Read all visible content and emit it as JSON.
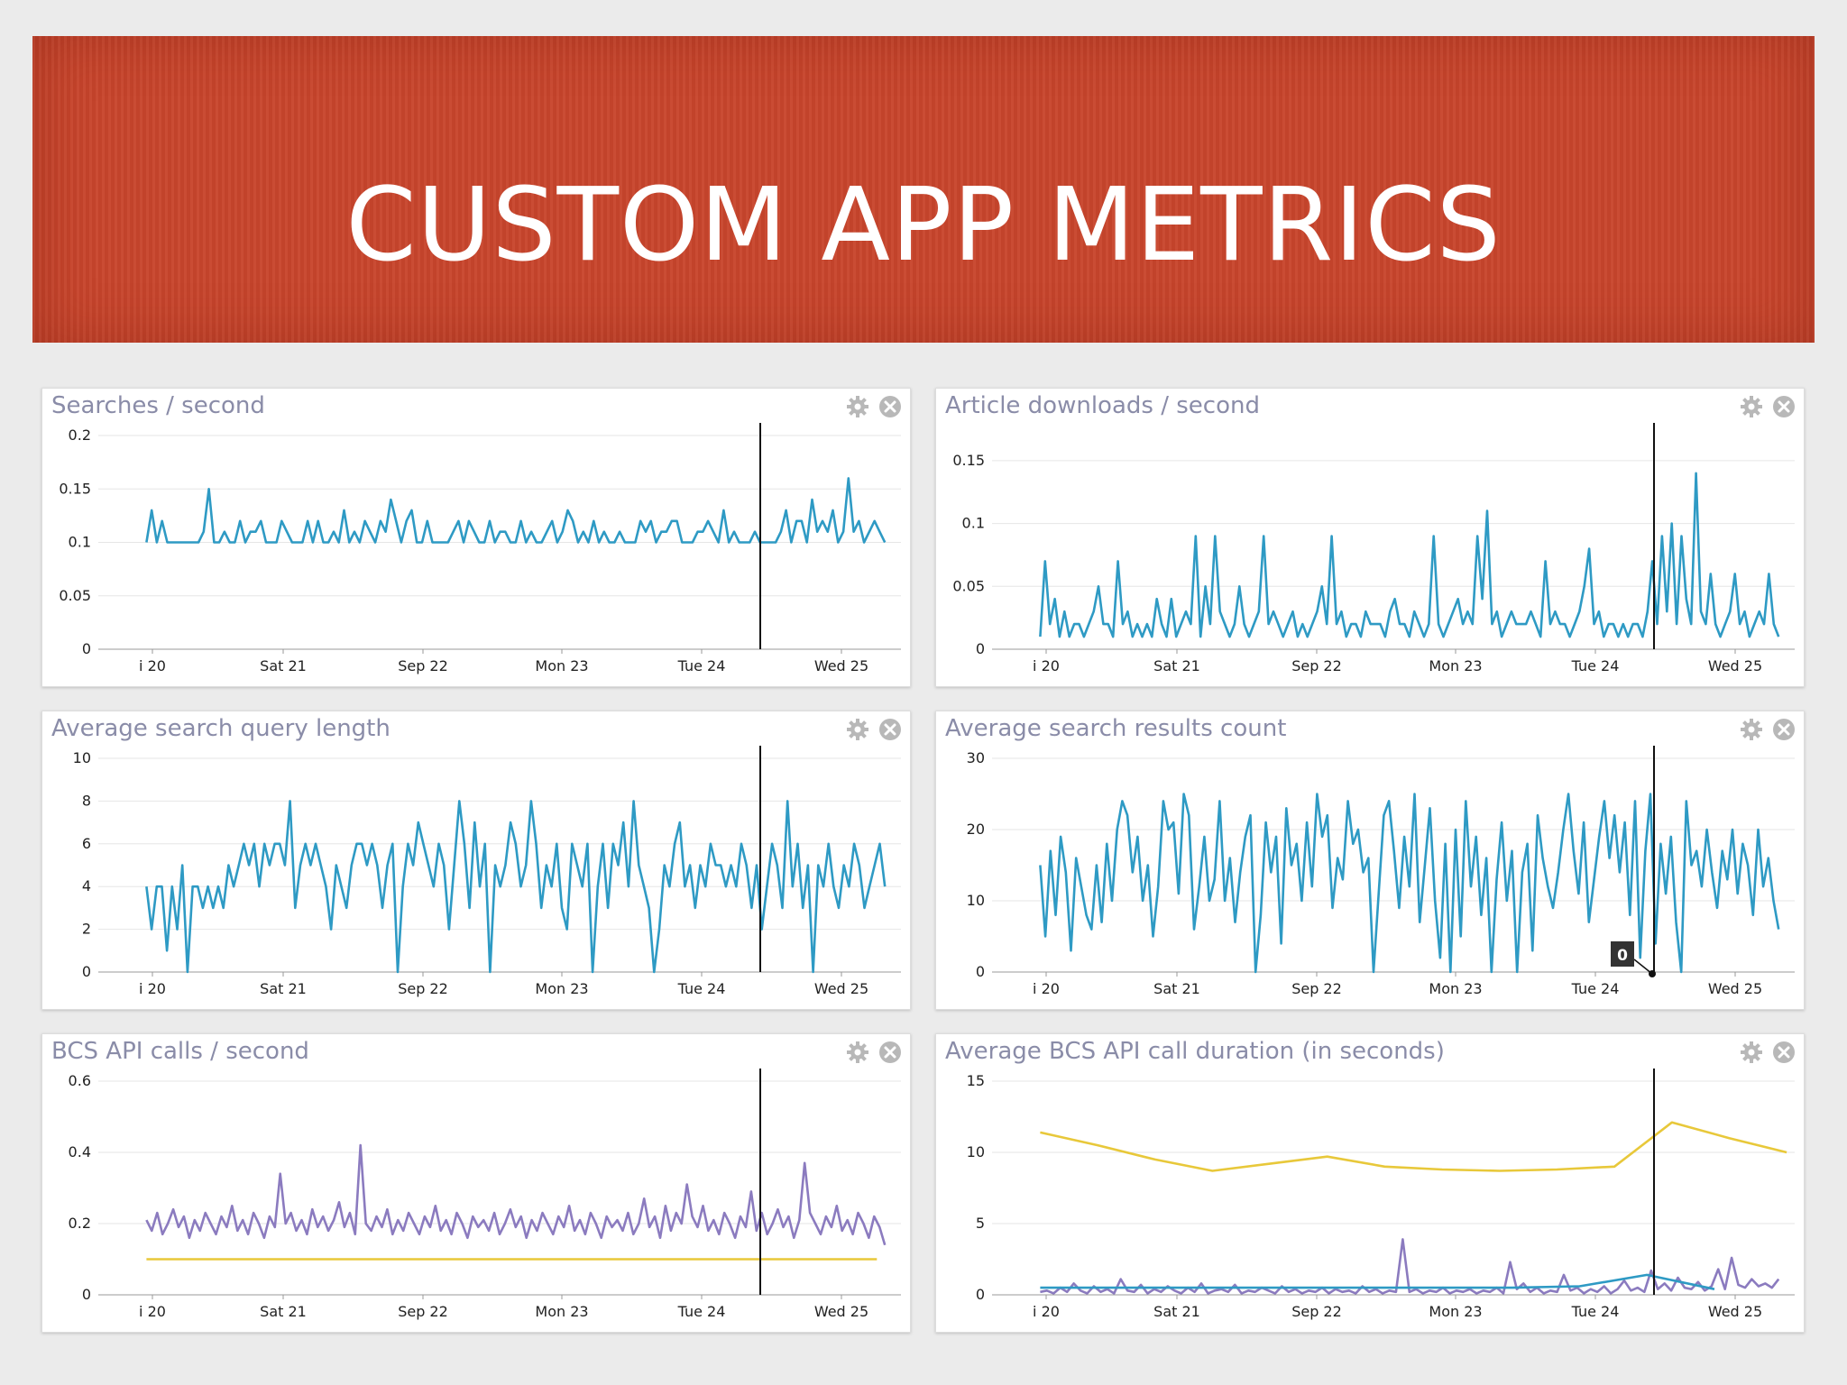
{
  "slide": {
    "title": "CUSTOM APP METRICS"
  },
  "colors": {
    "banner": "#c8452c",
    "series_blue": "#2e9ac4",
    "series_purple": "#8b7bbf",
    "series_yellow": "#e8c83a",
    "grid": "#e6e6e6",
    "marker": "#111111"
  },
  "x_ticks": [
    "i 20",
    "Sat 21",
    "Sep 22",
    "Mon 23",
    "Tue 24",
    "Wed 25"
  ],
  "chart_data": [
    {
      "type": "line",
      "title": "Searches / second",
      "x_ticks": [
        "i 20",
        "Sat 21",
        "Sep 22",
        "Mon 23",
        "Tue 24",
        "Wed 25"
      ],
      "yticks": [
        "0.2",
        "0.15",
        "0.1",
        "0.05",
        "0"
      ],
      "ylim": [
        0,
        0.2
      ],
      "grid": true,
      "marker_label": "",
      "series": [
        {
          "color": "#2e9ac4",
          "values": [
            0.1,
            0.13,
            0.1,
            0.12,
            0.1,
            0.1,
            0.1,
            0.1,
            0.1,
            0.1,
            0.1,
            0.11,
            0.15,
            0.1,
            0.1,
            0.11,
            0.1,
            0.1,
            0.12,
            0.1,
            0.11,
            0.11,
            0.12,
            0.1,
            0.1,
            0.1,
            0.12,
            0.11,
            0.1,
            0.1,
            0.1,
            0.12,
            0.1,
            0.12,
            0.1,
            0.1,
            0.11,
            0.1,
            0.13,
            0.1,
            0.11,
            0.1,
            0.12,
            0.11,
            0.1,
            0.12,
            0.11,
            0.14,
            0.12,
            0.1,
            0.12,
            0.13,
            0.1,
            0.1,
            0.12,
            0.1,
            0.1,
            0.1,
            0.1,
            0.11,
            0.12,
            0.1,
            0.12,
            0.11,
            0.1,
            0.1,
            0.12,
            0.1,
            0.11,
            0.11,
            0.1,
            0.1,
            0.12,
            0.1,
            0.11,
            0.1,
            0.1,
            0.11,
            0.12,
            0.1,
            0.11,
            0.13,
            0.12,
            0.1,
            0.11,
            0.1,
            0.12,
            0.1,
            0.11,
            0.1,
            0.1,
            0.11,
            0.1,
            0.1,
            0.1,
            0.12,
            0.11,
            0.12,
            0.1,
            0.11,
            0.11,
            0.12,
            0.12,
            0.1,
            0.1,
            0.1,
            0.11,
            0.11,
            0.12,
            0.11,
            0.1,
            0.13,
            0.1,
            0.11,
            0.1,
            0.1,
            0.1,
            0.11,
            0.1,
            0.1,
            0.1,
            0.1,
            0.11,
            0.13,
            0.1,
            0.12,
            0.12,
            0.1,
            0.14,
            0.11,
            0.12,
            0.11,
            0.13,
            0.1,
            0.11,
            0.16,
            0.11,
            0.12,
            0.1,
            0.11,
            0.12,
            0.11,
            0.1
          ]
        }
      ]
    },
    {
      "type": "line",
      "title": "Article downloads / second",
      "x_ticks": [
        "i 20",
        "Sat 21",
        "Sep 22",
        "Mon 23",
        "Tue 24",
        "Wed 25"
      ],
      "yticks": [
        "0.15",
        "0.1",
        "0.05",
        "0"
      ],
      "ylim": [
        0,
        0.17
      ],
      "grid": true,
      "marker_label": "",
      "series": [
        {
          "color": "#2e9ac4",
          "values": [
            0.01,
            0.07,
            0.02,
            0.04,
            0.01,
            0.03,
            0.01,
            0.02,
            0.02,
            0.01,
            0.02,
            0.03,
            0.05,
            0.02,
            0.02,
            0.01,
            0.07,
            0.02,
            0.03,
            0.01,
            0.02,
            0.01,
            0.02,
            0.01,
            0.04,
            0.02,
            0.01,
            0.04,
            0.01,
            0.02,
            0.03,
            0.02,
            0.09,
            0.01,
            0.05,
            0.02,
            0.09,
            0.03,
            0.02,
            0.01,
            0.02,
            0.05,
            0.02,
            0.01,
            0.02,
            0.03,
            0.09,
            0.02,
            0.03,
            0.02,
            0.01,
            0.02,
            0.03,
            0.01,
            0.02,
            0.01,
            0.02,
            0.03,
            0.05,
            0.02,
            0.09,
            0.02,
            0.03,
            0.01,
            0.02,
            0.02,
            0.01,
            0.03,
            0.02,
            0.02,
            0.02,
            0.01,
            0.03,
            0.04,
            0.02,
            0.02,
            0.01,
            0.03,
            0.02,
            0.01,
            0.02,
            0.09,
            0.02,
            0.01,
            0.02,
            0.03,
            0.04,
            0.02,
            0.03,
            0.02,
            0.09,
            0.04,
            0.11,
            0.02,
            0.03,
            0.01,
            0.02,
            0.03,
            0.02,
            0.02,
            0.02,
            0.03,
            0.02,
            0.01,
            0.07,
            0.02,
            0.03,
            0.02,
            0.02,
            0.01,
            0.02,
            0.03,
            0.05,
            0.08,
            0.02,
            0.03,
            0.01,
            0.02,
            0.02,
            0.01,
            0.02,
            0.01,
            0.02,
            0.02,
            0.01,
            0.03,
            0.07,
            0.02,
            0.09,
            0.03,
            0.1,
            0.02,
            0.09,
            0.04,
            0.02,
            0.14,
            0.03,
            0.02,
            0.06,
            0.02,
            0.01,
            0.02,
            0.03,
            0.06,
            0.02,
            0.03,
            0.01,
            0.02,
            0.03,
            0.02,
            0.06,
            0.02,
            0.01
          ]
        }
      ]
    },
    {
      "type": "line",
      "title": "Average search query length",
      "x_ticks": [
        "i 20",
        "Sat 21",
        "Sep 22",
        "Mon 23",
        "Tue 24",
        "Wed 25"
      ],
      "yticks": [
        "10",
        "8",
        "6",
        "4",
        "2",
        "0"
      ],
      "ylim": [
        0,
        10
      ],
      "grid": true,
      "marker_label": "",
      "series": [
        {
          "color": "#2e9ac4",
          "values": [
            4,
            2,
            4,
            4,
            1,
            4,
            2,
            5,
            0,
            4,
            4,
            3,
            4,
            3,
            4,
            3,
            5,
            4,
            5,
            6,
            5,
            6,
            4,
            6,
            5,
            6,
            6,
            5,
            8,
            3,
            5,
            6,
            5,
            6,
            5,
            4,
            2,
            5,
            4,
            3,
            5,
            6,
            6,
            5,
            6,
            5,
            3,
            5,
            6,
            0,
            4,
            6,
            5,
            7,
            6,
            5,
            4,
            6,
            5,
            2,
            5,
            8,
            6,
            3,
            7,
            4,
            6,
            0,
            5,
            4,
            5,
            7,
            6,
            4,
            5,
            8,
            6,
            3,
            5,
            4,
            6,
            3,
            2,
            6,
            5,
            4,
            6,
            0,
            4,
            6,
            3,
            6,
            5,
            7,
            4,
            8,
            5,
            4,
            3,
            0,
            2,
            5,
            4,
            6,
            7,
            4,
            5,
            3,
            5,
            4,
            6,
            5,
            5,
            4,
            5,
            4,
            6,
            5,
            3,
            5,
            2,
            4,
            6,
            5,
            3,
            8,
            4,
            6,
            3,
            5,
            0,
            5,
            4,
            6,
            4,
            3,
            5,
            4,
            6,
            5,
            3,
            4,
            5,
            6,
            4
          ]
        }
      ]
    },
    {
      "type": "line",
      "title": "Average search results count",
      "x_ticks": [
        "i 20",
        "Sat 21",
        "Sep 22",
        "Mon 23",
        "Tue 24",
        "Wed 25"
      ],
      "yticks": [
        "30",
        "20",
        "10",
        "0"
      ],
      "ylim": [
        0,
        30
      ],
      "grid": true,
      "marker_label": "0",
      "series": [
        {
          "color": "#2e9ac4",
          "values": [
            15,
            5,
            17,
            8,
            19,
            14,
            3,
            16,
            12,
            8,
            6,
            15,
            7,
            18,
            10,
            20,
            24,
            22,
            14,
            19,
            10,
            15,
            5,
            12,
            24,
            20,
            21,
            11,
            25,
            22,
            6,
            12,
            19,
            10,
            13,
            24,
            10,
            16,
            7,
            14,
            19,
            22,
            0,
            8,
            21,
            14,
            19,
            4,
            23,
            15,
            18,
            10,
            21,
            12,
            25,
            19,
            22,
            9,
            16,
            13,
            24,
            18,
            20,
            14,
            16,
            0,
            11,
            22,
            24,
            17,
            9,
            19,
            12,
            25,
            7,
            15,
            23,
            10,
            2,
            18,
            0,
            20,
            5,
            24,
            12,
            19,
            8,
            16,
            0,
            13,
            21,
            10,
            17,
            0,
            14,
            18,
            3,
            22,
            16,
            12,
            9,
            14,
            20,
            25,
            17,
            11,
            21,
            7,
            13,
            19,
            24,
            16,
            22,
            14,
            21,
            8,
            24,
            2,
            17,
            25,
            4,
            18,
            11,
            19,
            7,
            0,
            24,
            15,
            17,
            12,
            20,
            14,
            9,
            17,
            13,
            20,
            11,
            18,
            15,
            8,
            20,
            12,
            16,
            10,
            6
          ],
          "labels": [
            "0"
          ]
        }
      ]
    },
    {
      "type": "line",
      "title": "BCS API calls / second",
      "x_ticks": [
        "i 20",
        "Sat 21",
        "Sep 22",
        "Mon 23",
        "Tue 24",
        "Wed 25"
      ],
      "yticks": [
        "0.6",
        "0.4",
        "0.2",
        "0"
      ],
      "ylim": [
        0,
        0.6
      ],
      "grid": true,
      "marker_label": "",
      "series": [
        {
          "color": "#8b7bbf",
          "values": [
            0.21,
            0.18,
            0.23,
            0.17,
            0.2,
            0.24,
            0.19,
            0.22,
            0.16,
            0.21,
            0.18,
            0.23,
            0.2,
            0.17,
            0.22,
            0.19,
            0.25,
            0.18,
            0.21,
            0.17,
            0.23,
            0.2,
            0.16,
            0.22,
            0.19,
            0.34,
            0.2,
            0.23,
            0.18,
            0.21,
            0.17,
            0.24,
            0.19,
            0.22,
            0.18,
            0.21,
            0.26,
            0.19,
            0.23,
            0.17,
            0.42,
            0.2,
            0.18,
            0.22,
            0.19,
            0.24,
            0.17,
            0.21,
            0.18,
            0.23,
            0.2,
            0.17,
            0.22,
            0.19,
            0.25,
            0.18,
            0.21,
            0.17,
            0.23,
            0.2,
            0.16,
            0.22,
            0.19,
            0.21,
            0.18,
            0.23,
            0.17,
            0.2,
            0.24,
            0.19,
            0.22,
            0.16,
            0.21,
            0.18,
            0.23,
            0.2,
            0.17,
            0.22,
            0.19,
            0.25,
            0.18,
            0.21,
            0.17,
            0.23,
            0.2,
            0.16,
            0.22,
            0.19,
            0.21,
            0.18,
            0.23,
            0.17,
            0.2,
            0.27,
            0.19,
            0.22,
            0.16,
            0.25,
            0.18,
            0.23,
            0.2,
            0.31,
            0.22,
            0.19,
            0.25,
            0.18,
            0.21,
            0.17,
            0.23,
            0.2,
            0.16,
            0.22,
            0.19,
            0.29,
            0.18,
            0.23,
            0.17,
            0.2,
            0.24,
            0.19,
            0.22,
            0.16,
            0.21,
            0.37,
            0.23,
            0.2,
            0.17,
            0.22,
            0.19,
            0.25,
            0.18,
            0.21,
            0.17,
            0.23,
            0.2,
            0.16,
            0.22,
            0.19,
            0.14
          ]
        },
        {
          "color": "#e8c83a",
          "x_start": 0.06,
          "x_end": 0.97,
          "values": [
            0.1,
            0.1
          ]
        }
      ]
    },
    {
      "type": "line",
      "title": "Average BCS API call duration (in seconds)",
      "x_ticks": [
        "i 20",
        "Sat 21",
        "Sep 22",
        "Mon 23",
        "Tue 24",
        "Wed 25"
      ],
      "yticks": [
        "15",
        "10",
        "5",
        "0"
      ],
      "ylim": [
        0,
        15
      ],
      "grid": true,
      "marker_label": "",
      "series": [
        {
          "color": "#e8c83a",
          "x_start": 0.06,
          "x_end": 0.99,
          "values": [
            11.4,
            10.5,
            9.5,
            8.7,
            9.2,
            9.7,
            9.0,
            8.8,
            8.7,
            8.8,
            9.0,
            12.1,
            11.0,
            10.0
          ]
        },
        {
          "color": "#8b7bbf",
          "values": [
            0.2,
            0.3,
            0.1,
            0.5,
            0.2,
            0.8,
            0.3,
            0.1,
            0.6,
            0.2,
            0.4,
            0.1,
            1.1,
            0.3,
            0.2,
            0.7,
            0.1,
            0.4,
            0.2,
            0.6,
            0.3,
            0.1,
            0.5,
            0.2,
            0.8,
            0.1,
            0.3,
            0.4,
            0.2,
            0.7,
            0.1,
            0.3,
            0.2,
            0.5,
            0.3,
            0.1,
            0.6,
            0.2,
            0.4,
            0.1,
            0.3,
            0.2,
            0.5,
            0.1,
            0.4,
            0.2,
            0.3,
            0.1,
            0.6,
            0.2,
            0.4,
            0.1,
            0.3,
            0.2,
            3.9,
            0.2,
            0.4,
            0.1,
            0.3,
            0.2,
            0.5,
            0.1,
            0.3,
            0.2,
            0.4,
            0.1,
            0.3,
            0.2,
            0.5,
            0.1,
            2.3,
            0.4,
            0.8,
            0.2,
            0.5,
            0.1,
            0.3,
            0.2,
            1.4,
            0.3,
            0.5,
            0.1,
            0.4,
            0.2,
            0.6,
            0.1,
            0.4,
            1.0,
            0.3,
            0.5,
            0.2,
            1.7,
            0.4,
            0.8,
            0.3,
            1.2,
            0.5,
            0.4,
            0.9,
            0.3,
            0.6,
            1.8,
            0.4,
            2.6,
            0.7,
            0.5,
            1.1,
            0.6,
            0.8,
            0.5,
            1.1
          ]
        },
        {
          "color": "#2e9ac4",
          "x_start": 0.06,
          "x_end": 0.9,
          "values": [
            0.5,
            0.5,
            0.5,
            0.5,
            0.5,
            0.5,
            0.5,
            0.5,
            0.6,
            1.4,
            0.4
          ]
        }
      ]
    }
  ]
}
